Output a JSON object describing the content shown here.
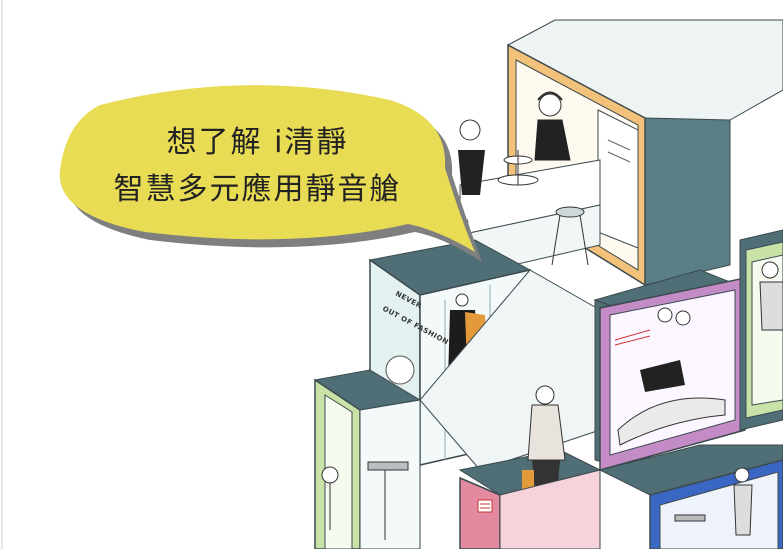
{
  "speech_bubble": {
    "line1": "想了解 i清靜",
    "line2": "智慧多元應用靜音艙"
  },
  "boutique_sign": {
    "line1": "NEVER",
    "line2": "OUT OF FASHION"
  },
  "colors": {
    "bubble_fill": "#e9dc55",
    "bubble_shadow": "#7f7f7f",
    "cafe_pod": "#f2c27a",
    "lounge_pod": "#c48cc7",
    "office_pod": "#c9e2a8",
    "fitting_pod": "#e38aa0",
    "blue_pod": "#3a66c4",
    "frame": "#4f6e75",
    "glass": "#e4f1f1"
  }
}
